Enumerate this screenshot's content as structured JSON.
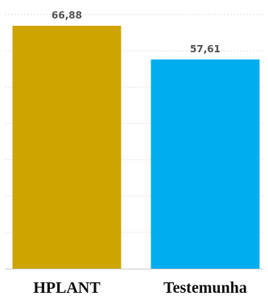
{
  "chart_data": {
    "type": "bar",
    "categories": [
      "HPLANT",
      "Testemunha"
    ],
    "values": [
      66.88,
      57.61
    ],
    "value_labels": [
      "66,88",
      "57,61"
    ],
    "colors": [
      "#CFA400",
      "#00AEEF"
    ],
    "title": "",
    "xlabel": "",
    "ylabel": "",
    "ylim": [
      0,
      70
    ],
    "grid": true,
    "legend": "none"
  }
}
